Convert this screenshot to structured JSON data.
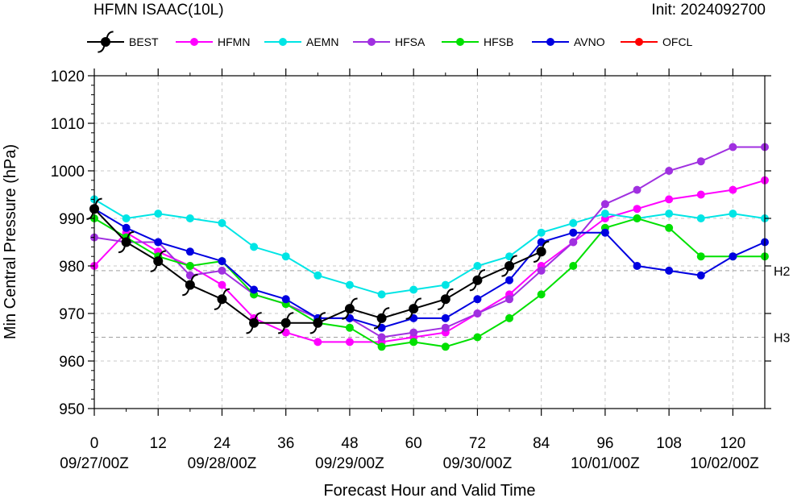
{
  "header": {
    "title": "HFMN ISAAC(10L)",
    "init": "Init: 2024092700"
  },
  "chart_data": {
    "type": "line",
    "title": "HFMN ISAAC(10L)",
    "subtitle": "Init: 2024092700",
    "xlabel": "Forecast Hour and Valid Time",
    "ylabel": "Min Central Pressure (hPa)",
    "xlim": [
      0,
      126
    ],
    "ylim": [
      950,
      1020
    ],
    "grid": true,
    "legend_position": "top",
    "x_ticks": [
      0,
      12,
      24,
      36,
      48,
      60,
      72,
      84,
      96,
      108,
      120
    ],
    "x_tick_labels": [
      "0",
      "12",
      "24",
      "36",
      "48",
      "60",
      "72",
      "84",
      "96",
      "108",
      "120"
    ],
    "date_labels": [
      {
        "x": 0,
        "label": "09/27/00Z"
      },
      {
        "x": 24,
        "label": "09/28/00Z"
      },
      {
        "x": 48,
        "label": "09/29/00Z"
      },
      {
        "x": 72,
        "label": "09/30/00Z"
      },
      {
        "x": 96,
        "label": "10/01/00Z"
      },
      {
        "x": 120,
        "label": "10/02/00Z"
      }
    ],
    "y_ticks": [
      950,
      960,
      970,
      980,
      990,
      1000,
      1010,
      1020
    ],
    "y_tick_labels": [
      "950",
      "960",
      "970",
      "980",
      "990",
      "1000",
      "1010",
      "1020"
    ],
    "reference_lines": [
      {
        "label": "H2",
        "y": 979
      },
      {
        "label": "H3",
        "y": 965
      }
    ],
    "series": [
      {
        "name": "BEST",
        "color": "#000000",
        "marker": "hurricane-symbol",
        "x": [
          0,
          6,
          12,
          18,
          24,
          30,
          36,
          42,
          48,
          54,
          60,
          66,
          72,
          78,
          84
        ],
        "values": [
          992,
          985,
          981,
          976,
          973,
          968,
          968,
          968,
          971,
          969,
          971,
          973,
          977,
          980,
          983
        ]
      },
      {
        "name": "HFMN",
        "color": "#ff00ff",
        "marker": "circle",
        "x": [
          0,
          6,
          12,
          18,
          24,
          30,
          36,
          42,
          48,
          54,
          60,
          66,
          72,
          78,
          84,
          90,
          96,
          102,
          108,
          114,
          120,
          126
        ],
        "values": [
          980,
          987,
          983,
          980,
          976,
          969,
          966,
          964,
          964,
          964,
          965,
          966,
          970,
          974,
          980,
          985,
          990,
          992,
          994,
          995,
          996,
          998
        ]
      },
      {
        "name": "AEMN",
        "color": "#00e5e5",
        "marker": "circle",
        "x": [
          0,
          6,
          12,
          18,
          24,
          30,
          36,
          42,
          48,
          54,
          60,
          66,
          72,
          78,
          84,
          90,
          96,
          102,
          108,
          114,
          120,
          126
        ],
        "values": [
          994,
          990,
          991,
          990,
          989,
          984,
          982,
          978,
          976,
          974,
          975,
          976,
          980,
          982,
          987,
          989,
          991,
          990,
          991,
          990,
          991,
          990
        ]
      },
      {
        "name": "HFSA",
        "color": "#a030e0",
        "marker": "circle",
        "x": [
          0,
          6,
          12,
          18,
          24,
          30,
          36,
          42,
          48,
          54,
          60,
          66,
          72,
          78,
          84,
          90,
          96,
          102,
          108,
          114,
          120,
          126
        ],
        "values": [
          986,
          985,
          985,
          978,
          979,
          974,
          972,
          969,
          969,
          965,
          966,
          967,
          970,
          973,
          979,
          985,
          993,
          996,
          1000,
          1002,
          1005,
          1005
        ]
      },
      {
        "name": "HFSB",
        "color": "#00e000",
        "marker": "circle",
        "x": [
          0,
          6,
          12,
          18,
          24,
          30,
          36,
          42,
          48,
          54,
          60,
          66,
          72,
          78,
          84,
          90,
          96,
          102,
          108,
          114,
          120,
          126
        ],
        "values": [
          990,
          986,
          982,
          980,
          981,
          974,
          972,
          968,
          967,
          963,
          964,
          963,
          965,
          969,
          974,
          980,
          988,
          990,
          988,
          982,
          982,
          982
        ]
      },
      {
        "name": "AVNO",
        "color": "#0000e0",
        "marker": "circle",
        "x": [
          0,
          6,
          12,
          18,
          24,
          30,
          36,
          42,
          48,
          54,
          60,
          66,
          72,
          78,
          84,
          90,
          96,
          102,
          108,
          114,
          120,
          126
        ],
        "values": [
          992,
          988,
          985,
          983,
          981,
          975,
          973,
          969,
          969,
          967,
          969,
          969,
          973,
          977,
          985,
          987,
          987,
          980,
          979,
          978,
          982,
          985
        ]
      },
      {
        "name": "OFCL",
        "color": "#ff0000",
        "marker": "circle",
        "x": [],
        "values": []
      }
    ]
  }
}
